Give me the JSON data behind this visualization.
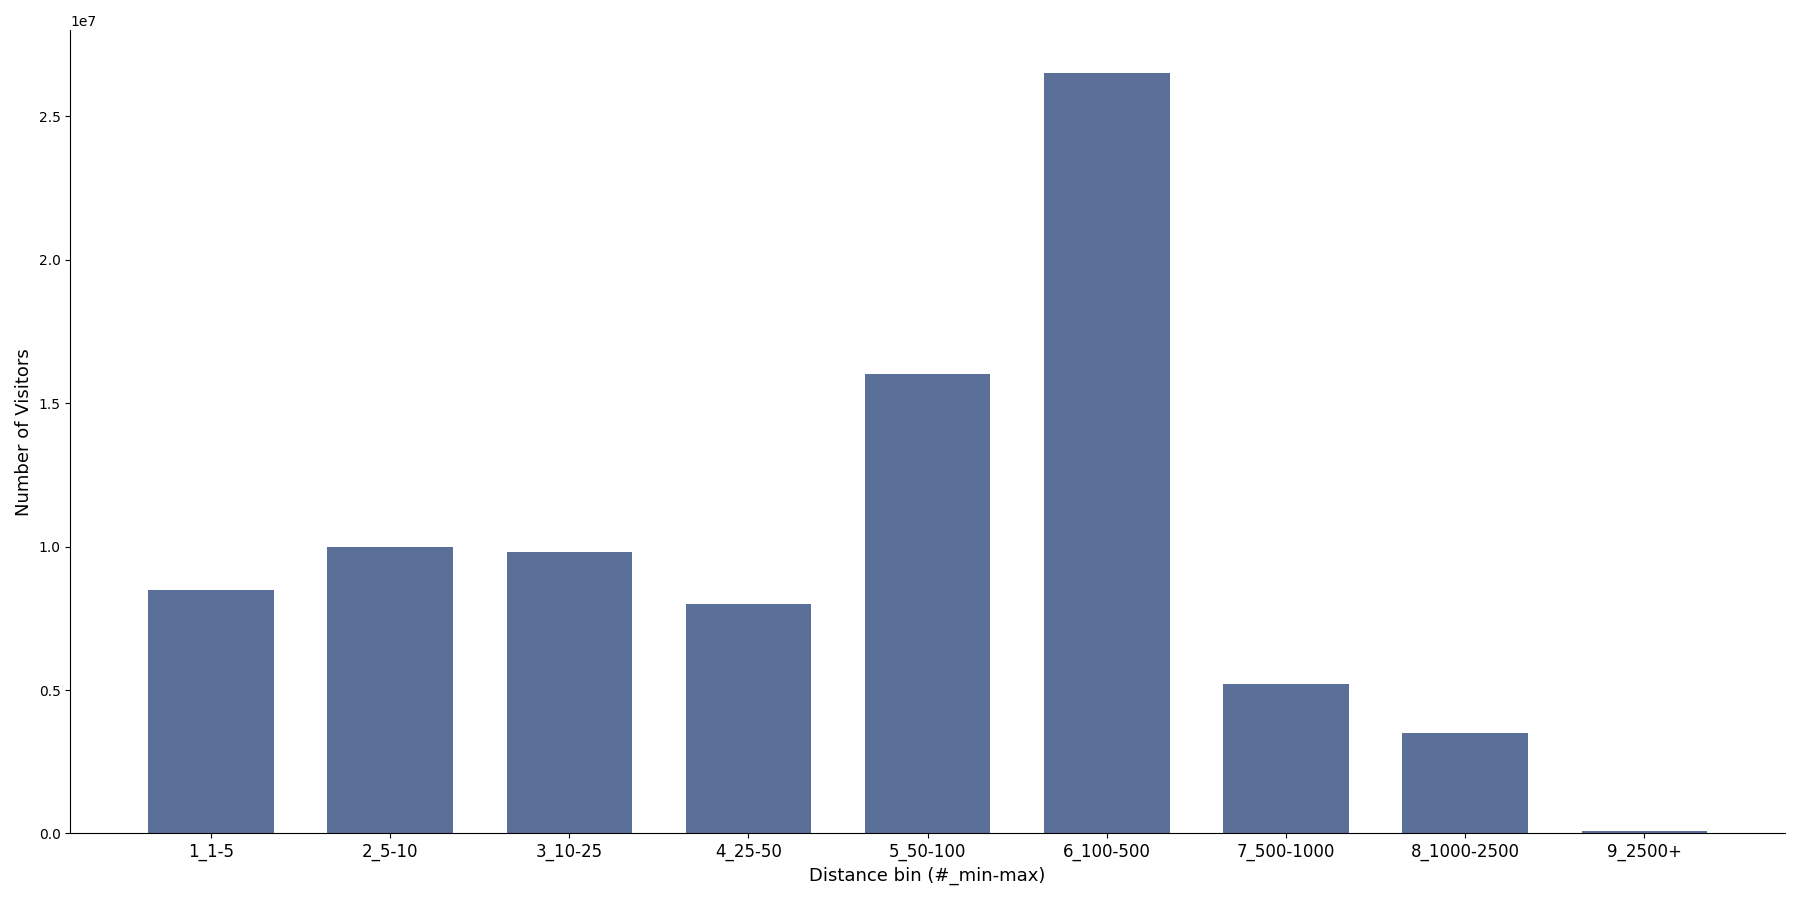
{
  "categories": [
    "1_1-5",
    "2_5-10",
    "3_10-25",
    "4_25-50",
    "5_50-100",
    "6_100-500",
    "7_500-1000",
    "8_1000-2500",
    "9_2500+"
  ],
  "values": [
    8500000,
    10000000,
    9800000,
    8000000,
    16000000,
    26500000,
    5200000,
    3500000,
    100000
  ],
  "bar_color": "#5b7099",
  "xlabel": "Distance bin (#_min-max)",
  "ylabel": "Number of Visitors",
  "ylim": [
    0,
    28000000
  ],
  "figsize": [
    18.0,
    9.0
  ],
  "dpi": 100
}
